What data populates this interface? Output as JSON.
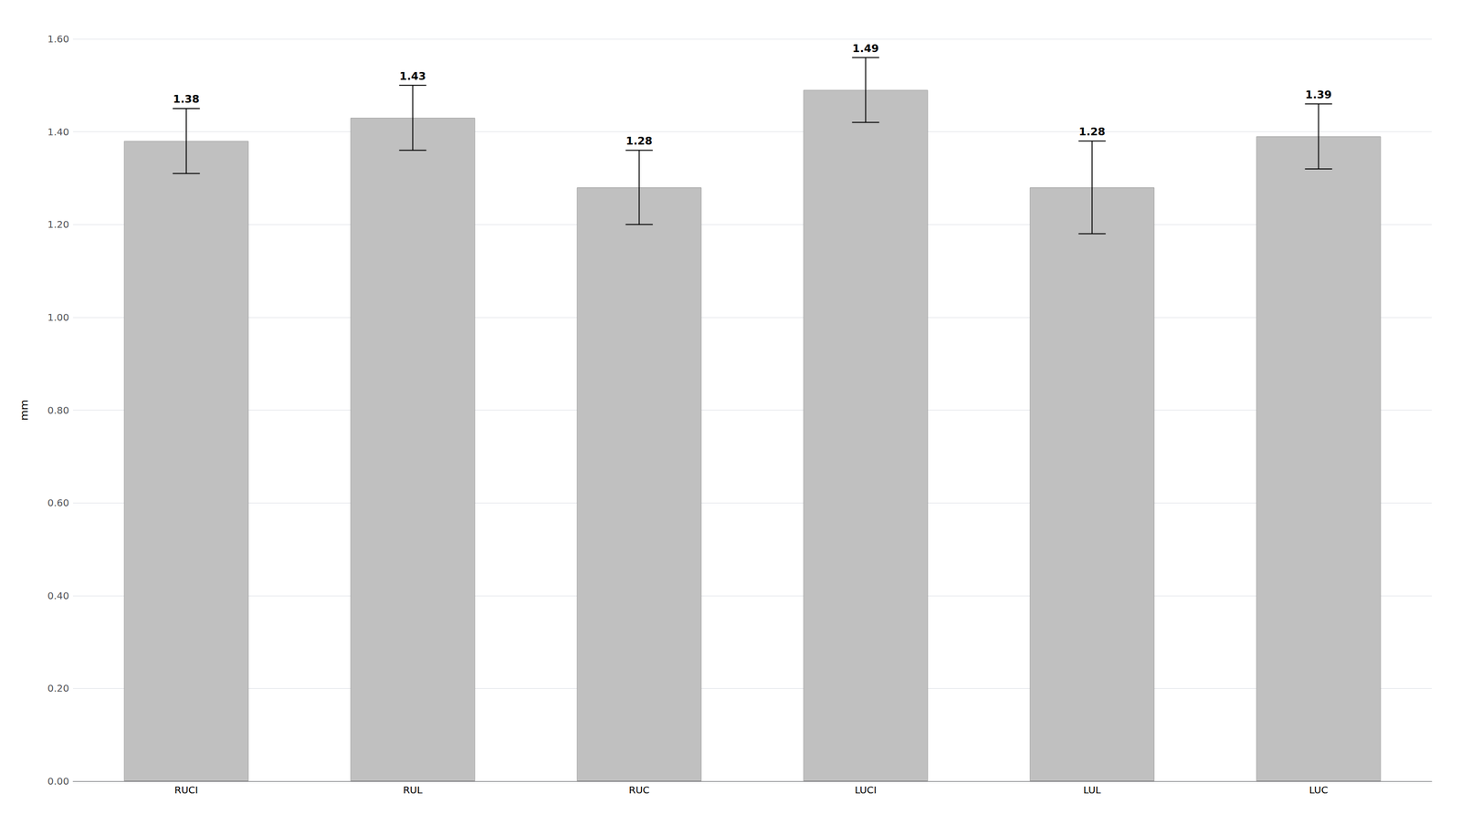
{
  "chart_data": {
    "type": "bar",
    "categories": [
      "RUCI",
      "RUL",
      "RUC",
      "LUCI",
      "LUL",
      "LUC"
    ],
    "values": [
      1.38,
      1.43,
      1.28,
      1.49,
      1.28,
      1.39
    ],
    "errors": [
      0.07,
      0.07,
      0.08,
      0.07,
      0.1,
      0.07
    ],
    "color": "#c0c0c0",
    "ylabel": "mm",
    "ylim": [
      0.0,
      1.6
    ],
    "yticks": [
      {
        "value": 0.0,
        "label": "0.00"
      },
      {
        "value": 0.2,
        "label": "0.20"
      },
      {
        "value": 0.4,
        "label": "0.40"
      },
      {
        "value": 0.6,
        "label": "0.60"
      },
      {
        "value": 0.8,
        "label": "0.80"
      },
      {
        "value": 1.0,
        "label": "1.00"
      },
      {
        "value": 1.2,
        "label": "1.20"
      },
      {
        "value": 1.4,
        "label": "1.40"
      },
      {
        "value": 1.6,
        "label": "1.60"
      }
    ],
    "grid": true,
    "data_labels": true
  }
}
